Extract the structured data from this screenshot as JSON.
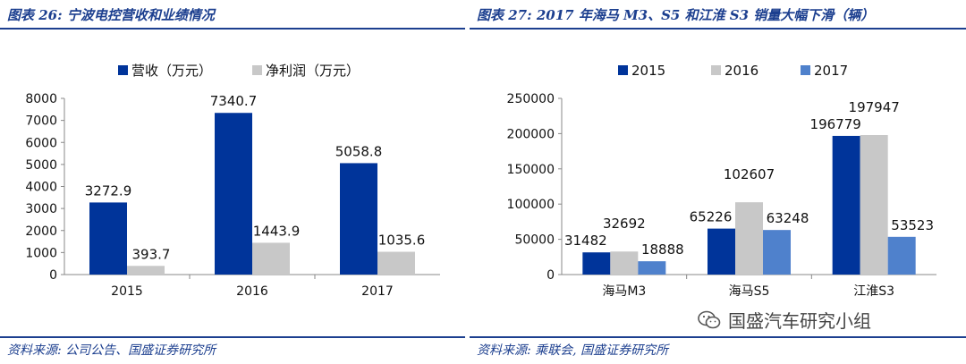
{
  "left": {
    "title": "图表 26:  宁波电控营收和业绩情况",
    "source": "资料来源:  公司公告、国盛证券研究所",
    "chart_data": {
      "type": "bar",
      "categories": [
        "2015",
        "2016",
        "2017"
      ],
      "series": [
        {
          "name": "营收（万元）",
          "values": [
            3272.9,
            7340.7,
            5058.8
          ],
          "color": "#00349a"
        },
        {
          "name": "净利润（万元）",
          "values": [
            393.7,
            1443.9,
            1035.6
          ],
          "color": "#c8c8c8"
        }
      ],
      "data_labels": [
        [
          "3272.9",
          "7340.7",
          "5058.8"
        ],
        [
          "393.7",
          "1443.9",
          "1035.6"
        ]
      ],
      "ylim": [
        0,
        8000
      ],
      "yticks": [
        "0",
        "1000",
        "2000",
        "3000",
        "4000",
        "5000",
        "6000",
        "7000",
        "8000"
      ],
      "legend": "top",
      "grid": false
    }
  },
  "right": {
    "title": "图表 27:  2017 年海马 M3、S5 和江淮 S3 销量大幅下滑（辆）",
    "source": "资料来源:  乘联会,  国盛证券研究所",
    "chart_data": {
      "type": "bar",
      "categories": [
        "海马M3",
        "海马S5",
        "江淮S3"
      ],
      "series": [
        {
          "name": "2015",
          "values": [
            31482,
            65226,
            196779
          ],
          "color": "#00349a"
        },
        {
          "name": "2016",
          "values": [
            32692,
            102607,
            197947
          ],
          "color": "#c8c8c8"
        },
        {
          "name": "2017",
          "values": [
            18888,
            63248,
            53523
          ],
          "color": "#4f81cc"
        }
      ],
      "data_labels": [
        [
          "31482",
          "65226",
          "196779"
        ],
        [
          "32692",
          "102607",
          "197947"
        ],
        [
          "18888",
          "63248",
          "53523"
        ]
      ],
      "ylim": [
        0,
        250000
      ],
      "yticks": [
        "0",
        "50000",
        "100000",
        "150000",
        "200000",
        "250000"
      ],
      "legend": "top",
      "grid": false
    }
  },
  "watermark": {
    "text": "国盛汽车研究小组",
    "icon": "wechat-icon"
  }
}
